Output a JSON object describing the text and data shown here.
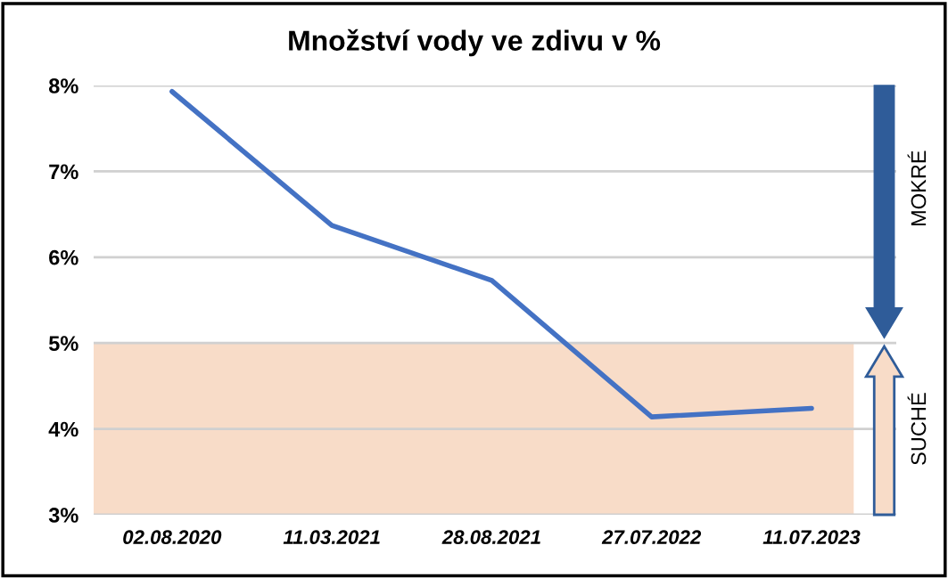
{
  "chart_data": {
    "type": "line",
    "title": "Množství vody ve zdivu v %",
    "categories": [
      "02.08.2020",
      "11.03.2021",
      "28.08.2021",
      "27.07.2022",
      "11.07.2023"
    ],
    "series": [
      {
        "color": "#4472c4",
        "values": [
          7.93,
          6.37,
          5.73,
          4.14,
          4.24
        ]
      }
    ],
    "ylim": [
      3,
      8
    ],
    "yticks": [
      {
        "value": 3,
        "label": "3%"
      },
      {
        "value": 4,
        "label": "4%"
      },
      {
        "value": 5,
        "label": "5%"
      },
      {
        "value": 6,
        "label": "6%"
      },
      {
        "value": 7,
        "label": "7%"
      },
      {
        "value": 8,
        "label": "8%"
      }
    ],
    "grid": "y",
    "marker": "none",
    "line_style": "solid",
    "annotations": [
      "MOKRÉ"
    ],
    "bands": [
      {
        "axis": "y",
        "from": 3,
        "to": 5,
        "label": "SUCHÉ",
        "color": "#f8dcc8"
      }
    ]
  }
}
